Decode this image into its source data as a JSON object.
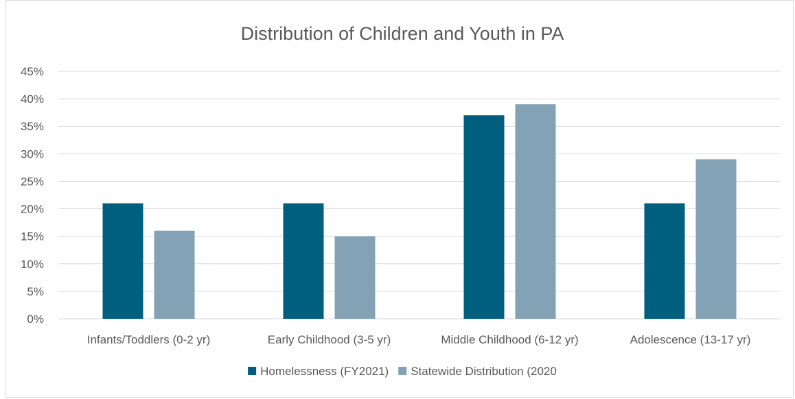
{
  "chart_data": {
    "type": "bar",
    "title": "Distribution of Children and Youth in PA",
    "xlabel": "",
    "ylabel": "",
    "categories": [
      "Infants/Toddlers (0-2 yr)",
      "Early Childhood (3-5 yr)",
      "Middle Childhood (6-12 yr)",
      "Adolescence (13-17 yr)"
    ],
    "series": [
      {
        "name": "Homelessness (FY2021)",
        "color": "#005f7f",
        "values": [
          21,
          21,
          37,
          21
        ]
      },
      {
        "name": "Statewide Distribution (2020",
        "color": "#84a2b5",
        "values": [
          16,
          15,
          39,
          29
        ]
      }
    ],
    "ylim": [
      0,
      45
    ],
    "yticks": [
      0,
      5,
      10,
      15,
      20,
      25,
      30,
      35,
      40,
      45
    ],
    "ytick_suffix": "%",
    "grid": true,
    "gridline_color": "#d9d9d9",
    "legend_position": "bottom"
  }
}
